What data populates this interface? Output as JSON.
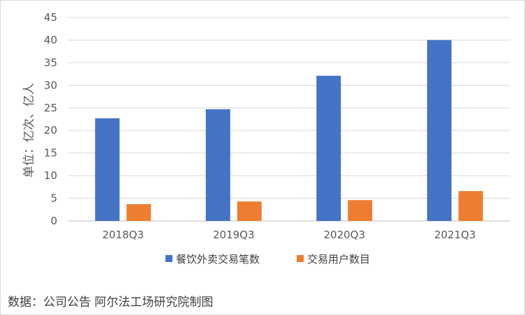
{
  "chart_data": {
    "type": "bar",
    "categories": [
      "2018Q3",
      "2019Q3",
      "2020Q3",
      "2021Q3"
    ],
    "series": [
      {
        "name": "餐饮外卖交易笔数",
        "color": "#4472c4",
        "values": [
          22.7,
          24.7,
          32.1,
          40.0
        ]
      },
      {
        "name": "交易用户数目",
        "color": "#ed7d31",
        "values": [
          3.7,
          4.3,
          4.6,
          6.6
        ]
      }
    ],
    "ylabel": "单位：亿次、亿人",
    "ylim": [
      0,
      45
    ],
    "yticks": [
      0,
      5,
      10,
      15,
      20,
      25,
      30,
      35,
      40,
      45
    ],
    "grid": true,
    "legend": "bottom"
  },
  "source_note": "数据：公司公告 阿尔法工场研究院制图"
}
